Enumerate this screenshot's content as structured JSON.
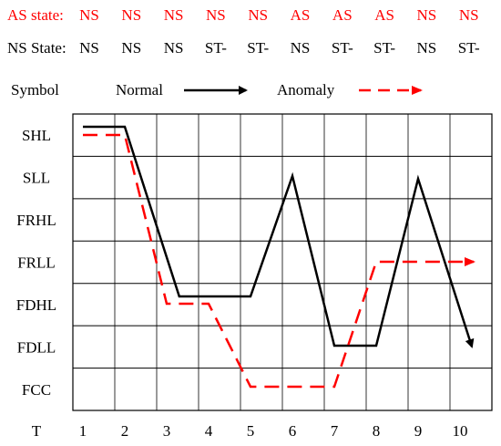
{
  "header": {
    "as_state": {
      "label": "AS state:",
      "values": [
        "NS",
        "NS",
        "NS",
        "NS",
        "NS",
        "AS",
        "AS",
        "AS",
        "NS",
        "NS"
      ]
    },
    "ns_state": {
      "label": "NS State:",
      "values": [
        "NS",
        "NS",
        "NS",
        "ST-",
        "ST-",
        "NS",
        "ST-",
        "ST-",
        "NS",
        "ST-"
      ]
    },
    "legend": {
      "label": "Symbol",
      "normal": "Normal",
      "anomaly": "Anomaly"
    }
  },
  "chart_data": {
    "type": "line",
    "y_categories": [
      "SHL",
      "SLL",
      "FRHL",
      "FRLL",
      "FDHL",
      "FDLL",
      "FCC"
    ],
    "x_label": "T",
    "x": [
      1,
      2,
      3,
      4,
      5,
      6,
      7,
      8,
      9,
      10
    ],
    "series": [
      {
        "name": "Normal",
        "style": "solid",
        "color": "#000000",
        "points": [
          [
            1,
            "SHL"
          ],
          [
            2,
            "SHL"
          ],
          [
            3.3,
            "FDHL"
          ],
          [
            5,
            "FDHL"
          ],
          [
            6,
            "SLL"
          ],
          [
            7,
            "FDLL"
          ],
          [
            8,
            "FDLL"
          ],
          [
            9,
            "SLL"
          ],
          [
            10,
            "FDLL"
          ]
        ],
        "arrow_end": true
      },
      {
        "name": "Anomaly",
        "style": "dashed",
        "color": "#ff0000",
        "points": [
          [
            1,
            "SHL"
          ],
          [
            2,
            "SHL"
          ],
          [
            3,
            "FDHL"
          ],
          [
            4,
            "FDHL"
          ],
          [
            5,
            "FCC"
          ],
          [
            7,
            "FCC"
          ],
          [
            8,
            "FRLL"
          ],
          [
            10,
            "FRLL"
          ]
        ],
        "arrow_end": true
      }
    ]
  }
}
